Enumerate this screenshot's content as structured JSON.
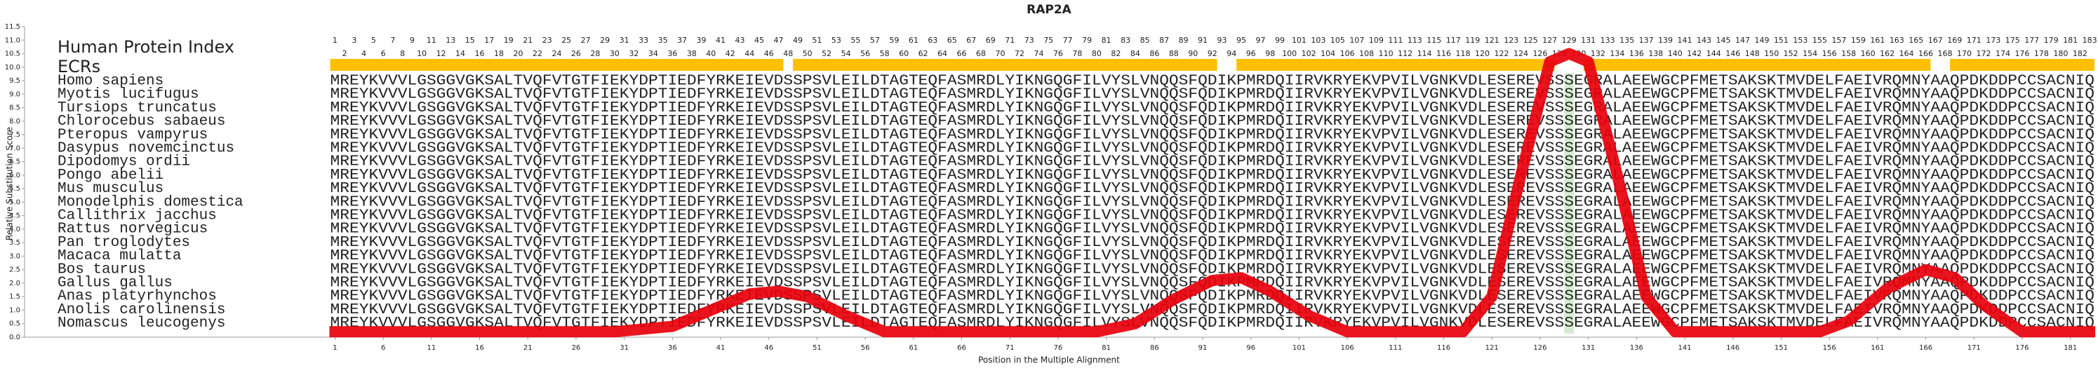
{
  "chart_data": {
    "type": "line",
    "title": "RAP2A",
    "ylabel": "Relative Substitution Score",
    "xlabel": "Position in the Multiple Alignment",
    "index_title": "Human Protein Index",
    "ecr_title": "ECRs",
    "ylim": [
      0,
      11.5
    ],
    "yticks": [
      {
        "value": 0,
        "label": "0.0"
      },
      0.5,
      {
        "value": 1,
        "label": "1.0"
      },
      1.5,
      {
        "value": 2,
        "label": "2.0"
      },
      2.5,
      {
        "value": 3,
        "label": "3.0"
      },
      3.5,
      {
        "value": 4,
        "label": "4.0"
      },
      4.5,
      {
        "value": 5,
        "label": "5.0"
      },
      5.5,
      {
        "value": 6,
        "label": "6.0"
      },
      6.5,
      {
        "value": 7,
        "label": "7.0"
      },
      7.5,
      {
        "value": 8,
        "label": "8.0"
      },
      8.5,
      {
        "value": 9,
        "label": "9.0"
      },
      9.5,
      {
        "value": 10,
        "label": "10.0"
      },
      10.5,
      {
        "value": 11,
        "label": "11.0"
      },
      11.5
    ],
    "xlim": [
      -31.2,
      183.5
    ],
    "xticks": [
      1,
      6,
      11,
      16,
      21,
      26,
      31,
      36,
      41,
      46,
      51,
      56,
      61,
      66,
      71,
      76,
      81,
      86,
      91,
      96,
      101,
      106,
      111,
      116,
      121,
      126,
      131,
      136,
      141,
      146,
      151,
      156,
      161,
      166,
      171,
      176,
      181
    ],
    "protein_index": [
      1,
      2,
      3,
      4,
      5,
      6,
      7,
      8,
      9,
      10,
      11,
      12,
      13,
      14,
      15,
      16,
      17,
      18,
      19,
      20,
      21,
      22,
      23,
      24,
      25,
      26,
      27,
      28,
      29,
      30,
      31,
      32,
      33,
      34,
      35,
      36,
      37,
      38,
      39,
      40,
      41,
      42,
      43,
      44,
      45,
      46,
      47,
      48,
      49,
      50,
      51,
      52,
      53,
      54,
      55,
      56,
      57,
      58,
      59,
      60,
      61,
      62,
      63,
      64,
      65,
      66,
      67,
      68,
      69,
      70,
      71,
      72,
      73,
      74,
      75,
      76,
      77,
      78,
      79,
      80,
      81,
      82,
      83,
      84,
      85,
      86,
      87,
      88,
      89,
      90,
      91,
      92,
      93,
      94,
      95,
      96,
      97,
      98,
      99,
      100,
      101,
      102,
      103,
      104,
      105,
      106,
      107,
      108,
      109,
      110,
      111,
      112,
      113,
      114,
      115,
      116,
      117,
      118,
      119,
      120,
      121,
      122,
      123,
      124,
      125,
      126,
      127,
      128,
      129,
      130,
      131,
      132,
      133,
      134,
      135,
      136,
      137,
      138,
      139,
      140,
      141,
      142,
      143,
      144,
      145,
      146,
      147,
      148,
      149,
      150,
      151,
      152,
      153,
      154,
      155,
      156,
      157,
      158,
      159,
      160,
      161,
      162,
      163,
      164,
      165,
      166,
      167,
      168,
      169,
      170,
      171,
      172,
      173,
      174,
      175,
      176,
      177,
      178,
      179,
      180,
      181,
      182,
      183
    ],
    "ecrs": [
      [
        1,
        47
      ],
      [
        49,
        92
      ],
      [
        95,
        127
      ],
      [
        131,
        166
      ],
      [
        169,
        183
      ]
    ],
    "ecr_color": "#ffc000",
    "highlight_position": 129,
    "highlight_color": "#d6ecd2",
    "sequence_color": "#1f3a93",
    "alignment": [
      {
        "name": "Homo sapiens",
        "sequence": "MREYKVVVLGSGGVGKSALTVQFVTGTFIEKYDPTIEDFYRKEIEVDSSPSVLEILDTAGTEQFASMRDLYIKNGQGFILVYSLVNQQSFQDIKPMRDQIIRVKRYEKVPVILVGNKVDLESEREVSSSEGRALAEEWGCPFMETSAKSKTMVDELFAEIVRQMNYAAQPDKDDPCCSACNIQ"
      },
      {
        "name": "Myotis lucifugus",
        "sequence": "MREYKVVVLGSGGVGKSALTVQFVTGTFIEKYDPTIEDFYRKEIEVDSSPSVLEILDTAGTEQFASMRDLYIKNGQGFILVYSLVNQQSFQDIKPMRDQIIRVKRYEKVPVILVGNKVDLESEREVSSSEGRALAEEWGCPFMETSAKSKTMVDELFAEIVRQMNYAAQPDKDDPCCSACNIQ"
      },
      {
        "name": "Tursiops truncatus",
        "sequence": "MREYKVVVLGSGGVGKSALTVQFVTGTFIEKYDPTIEDFYRKEIEVDSSPSVLEILDTAGTEQFASMRDLYIKNGQGFILVYSLVNQQSFQDIKPMRDQIIRVKRYEKVPVILVGNKVDLESEREVSSSEGRALAEEWGCPFMETSAKSKTMVDELFAEIVRQMNYAAQPDKDDPCCSACNIQ"
      },
      {
        "name": "Chlorocebus sabaeus",
        "sequence": "MREYKVVVLGSGGVGKSALTVQFVTGTFIEKYDPTIEDFYRKEIEVDSSPSVLEILDTAGTEQFASMRDLYIKNGQGFILVYSLVNQQSFQDIKPMRDQIIRVKRYEKVPVILVGNKVDLESEREVSSSEGRALAEEWGCPFMETSAKSKTMVDELFAEIVRQMNYAAQPDKDDPCCSACNIQ"
      },
      {
        "name": "Pteropus vampyrus",
        "sequence": "MREYKVVVLGSGGVGKSALTVQFVTGTFIEKYDPTIEDFYRKEIEVDSSPSVLEILDTAGTEQFASMRDLYIKNGQGFILVYSLVNQQSFQDIKPMRDQIIRVKRYEKVPVILVGNKVDLESEREVSSSEGRALAEEWGCPFMETSAKSKTMVDELFAEIVRQMNYAAQPDKDDPCCSACNIQ"
      },
      {
        "name": "Dasypus novemcinctus",
        "sequence": "MREYKVVVLGSGGVGKSALTVQFVTGTFIEKYDPTIEDFYRKEIEVDSSPSVLEILDTAGTEQFASMRDLYIKNGQGFILVYSLVNQQSFQDIKPMRDQIIRVKRYEKVPVILVGNKVDLESEREVSSSEGRALAEEWGCPFMETSAKSKTMVDELFAEIVRQMNYAAQPDKDDPCCSACNIQ"
      },
      {
        "name": "Dipodomys ordii",
        "sequence": "MREYKVVVLGSGGVGKSALTVQFVTGTFIEKYDPTIEDFYRKEIEVDSSPSVLEILDTAGTEQFASMRDLYIKNGQGFILVYSLVNQQSFQDIKPMRDQIIRVKRYEKVPVILVGNKVDLESEREVSSSEGRALAEEWGCPFMETSAKSKTMVDELFAEIVRQMNYAAQPDKDDPCCSACNIQ"
      },
      {
        "name": "Pongo abelii",
        "sequence": "MREYKVVVLGSGGVGKSALTVQFVTGTFIEKYDPTIEDFYRKEIEVDSSPSVLEILDTAGTEQFASMRDLYIKNGQGFILVYSLVNQQSFQDIKPMRDQIIRVKRYEKVPVILVGNKVDLESEREVSSSEGRALAEEWGCPFMETSAKSKTMVDELFAEIVRQMNYAAQPDKDDPCCSACNIQ"
      },
      {
        "name": "Mus musculus",
        "sequence": "MREYKVVVLGSGGVGKSALTVQFVTGTFIEKYDPTIEDFYRKEIEVDSSPSVLEILDTAGTEQFASMRDLYIKNGQGFILVYSLVNQQSFQDIKPMRDQIIRVKRYEKVPVILVGNKVDLESEREVSSSEGRALAEEWGCPFMETSAKSKTMVDELFAEIVRQMNYAAQPDKDDPCCSACNIQ"
      },
      {
        "name": "Monodelphis domestica",
        "sequence": "MREYKVVVLGSGGVGKSALTVQFVTGTFIEKYDPTIEDFYRKEIEVDSSPSVLEILDTAGTEQFASMRDLYIKNGQGFILVYSLVNQQSFQDIKPMRDQIIRVKRYEKVPVILVGNKVDLESEREVSSSEGRALAEEWGCPFMETSAKSKTMVDELFAEIVRQMNYAAQPDKDDPCCSACNIQ"
      },
      {
        "name": "Callithrix jacchus",
        "sequence": "MREYKVVVLGSGGVGKSALTVQFVTGTFIEKYDPTIEDFYRKEIEVDSSPSVLEILDTAGTEQFASMRDLYIKNGQGFILVYSLVNQQSFQDIKPMRDQIIRVKRYEKVPVILVGNKVDLESEREVSSSEGRALAEEWGCPFMETSAKSKTMVDELFAEIVRQMNYAAQPDKDDPCCSACNIQ"
      },
      {
        "name": "Rattus norvegicus",
        "sequence": "MREYKVVVLGSGGVGKSALTVQFVTGTFIEKYDPTIEDFYRKEIEVDSSPSVLEILDTAGTEQFASMRDLYIKNGQGFILVYSLVNQQSFQDIKPMRDQIIRVKRYEKVPVILVGNKVDLESEREVSSSEGRALAEEWGCPFMETSAKSKTMVDELFAEIVRQMNYAAQPDKDDPCCSACNIQ"
      },
      {
        "name": "Pan troglodytes",
        "sequence": "MREYKVVVLGSGGVGKSALTVQFVTGTFIEKYDPTIEDFYRKEIEVDSSPSVLEILDTAGTEQFASMRDLYIKNGQGFILVYSLVNQQSFQDIKPMRDQIIRVKRYEKVPVILVGNKVDLESEREVSSSEGRALAEEWGCPFMETSAKSKTMVDELFAEIVRQMNYAAQPDKDDPCCSACNIQ"
      },
      {
        "name": "Macaca mulatta",
        "sequence": "MREYKVVVLGSGGVGKSALTVQFVTGTFIEKYDPTIEDFYRKEIEVDSSPSVLEILDTAGTEQFASMRDLYIKNGQGFILVYSLVNQQSFQDIKPMRDQIIRVKRYEKVPVILVGNKVDLESEREVSSSEGRALAEEWGCPFMETSAKSKTMVDELFAEIVRQMNYAAQPDKDDPCCSACNIQ"
      },
      {
        "name": "Bos taurus",
        "sequence": "MREYKVVVLGSGGVGKSALTVQFVTGTFIEKYDPTIEDFYRKEIEVDSSPSVLEILDTAGTEQFASMRDLYIKNGQGFILVYSLVNQQSFQDIKPMRDQIIRVKRYEKVPVILVGNKVDLESEREVSSSEGRALAEEWGCPFMETSAKSKTMVDELFAEIVRQMNYAAQPDKDDPCCSACNIQ"
      },
      {
        "name": "Gallus gallus",
        "sequence": "MREYKVVVLGSGGVGKSALTVQFVTGTFIEKYDPTIEDFYRKEIEVDSSPSVLEILDTAGTEQFASMRDLYIKNGQGFILVYSLVNQQSFQDIKPMRDQIIRVKRYEKVPVILVGNKVDLESEREVSSSEGRALAEEWGCPFMETSAKSKTMVDELFAEIVRQMNYAAQPDKDDPCCSACNIQ"
      },
      {
        "name": "Anas platyrhynchos",
        "sequence": "MREYKVVVLGSGGVGKSALTVQFVTGTFIEKYDPTIEDFYRKEIEVDSSPSVLEILDTAGTEQFASMRDLYIKNGQGFILVYSLVNQQSFQDIKPMRDQIIRVKRYEKVPVILVGNKVDLESEREVSSSEGRALAEEWGCPFMETSAKSKTMVDELFAEIVRQMNYAAQPDKDDPCCSACNIQ"
      },
      {
        "name": "Anolis carolinensis",
        "sequence": "MREYKVVVLGSGGVGKSALTVQFVTGTFIEKYDPTIEDFYRKEIEVDSSPSVLEILDTAGTEQFASMRDLYIKNGQGFILVYSLVNQQSFQDIKPMRDQIIRVKRYEKVPVILVGNKVDLESEREVSSSEGRALAEEWGCPFMETSAKSKTMVDELFAEIVRQMNYAAQPDKDDPCCSACNIQ"
      },
      {
        "name": "Nomascus leucogenys",
        "sequence": "MREYKVVVLGSGGVGKSALTVQFVTGTFIEKYDPTIEDFYRKEIEVDSSPSVLEILDTAGTEQFASMRDLYIKNGQGFILVYSLVNQQSFQDIKPMRDQIIRVKRYEKVPVILVGNKVDLESEREVSSSEGRALAEEWGCPFMETSAKSKTMVDELFAEIVRQMNYAAQPDKDDPCCSACNIQ"
      }
    ],
    "series": [
      {
        "color": "#e8000b",
        "x": [
          1,
          30,
          36,
          40,
          44,
          47,
          50,
          54,
          58,
          80,
          84,
          88,
          92,
          95,
          98,
          102,
          106,
          118,
          121,
          124,
          127,
          129,
          131,
          134,
          137,
          140,
          155,
          158,
          162,
          166,
          169,
          172,
          176,
          183
        ],
        "values": [
          0.2,
          0.2,
          0.4,
          1.0,
          1.6,
          1.7,
          1.5,
          0.8,
          0.2,
          0.2,
          0.5,
          1.4,
          2.1,
          2.2,
          1.7,
          0.8,
          0.2,
          0.2,
          1.5,
          6.0,
          10.2,
          10.5,
          10.2,
          6.0,
          1.5,
          0.2,
          0.2,
          0.6,
          1.8,
          2.5,
          2.2,
          1.2,
          0.2,
          0.2
        ]
      }
    ]
  }
}
